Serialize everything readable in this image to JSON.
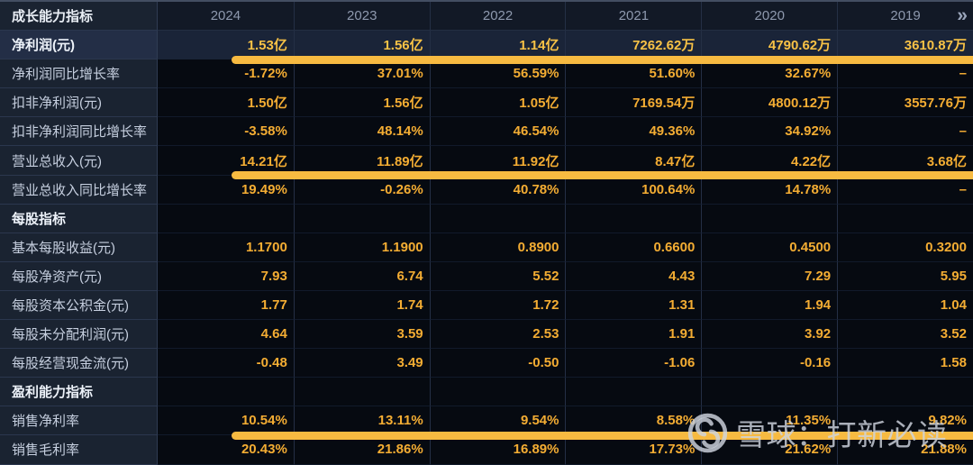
{
  "watermark": {
    "text": "雪球：打新必读"
  },
  "table": {
    "corner_label": "成长能力指标",
    "years": [
      "2024",
      "2023",
      "2022",
      "2021",
      "2020",
      "2019"
    ],
    "more_icon": "»",
    "rows": [
      {
        "type": "highlight",
        "bar": true,
        "label": "净利润(元)",
        "values": [
          "1.53亿",
          "1.56亿",
          "1.14亿",
          "7262.62万",
          "4790.62万",
          "3610.87万"
        ]
      },
      {
        "type": "data",
        "bar": false,
        "label": "净利润同比增长率",
        "values": [
          "-1.72%",
          "37.01%",
          "56.59%",
          "51.60%",
          "32.67%",
          "–"
        ]
      },
      {
        "type": "data",
        "bar": false,
        "label": "扣非净利润(元)",
        "values": [
          "1.50亿",
          "1.56亿",
          "1.05亿",
          "7169.54万",
          "4800.12万",
          "3557.76万"
        ]
      },
      {
        "type": "data",
        "bar": false,
        "label": "扣非净利润同比增长率",
        "values": [
          "-3.58%",
          "48.14%",
          "46.54%",
          "49.36%",
          "34.92%",
          "–"
        ]
      },
      {
        "type": "data",
        "bar": true,
        "label": "营业总收入(元)",
        "values": [
          "14.21亿",
          "11.89亿",
          "11.92亿",
          "8.47亿",
          "4.22亿",
          "3.68亿"
        ]
      },
      {
        "type": "data",
        "bar": false,
        "label": "营业总收入同比增长率",
        "values": [
          "19.49%",
          "-0.26%",
          "40.78%",
          "100.64%",
          "14.78%",
          "–"
        ]
      },
      {
        "type": "section",
        "bar": false,
        "label": "每股指标",
        "values": [
          "",
          "",
          "",
          "",
          "",
          ""
        ]
      },
      {
        "type": "data",
        "bar": false,
        "label": "基本每股收益(元)",
        "values": [
          "1.1700",
          "1.1900",
          "0.8900",
          "0.6600",
          "0.4500",
          "0.3200"
        ]
      },
      {
        "type": "data",
        "bar": false,
        "label": "每股净资产(元)",
        "values": [
          "7.93",
          "6.74",
          "5.52",
          "4.43",
          "7.29",
          "5.95"
        ]
      },
      {
        "type": "data",
        "bar": false,
        "label": "每股资本公积金(元)",
        "values": [
          "1.77",
          "1.74",
          "1.72",
          "1.31",
          "1.94",
          "1.04"
        ]
      },
      {
        "type": "data",
        "bar": false,
        "label": "每股未分配利润(元)",
        "values": [
          "4.64",
          "3.59",
          "2.53",
          "1.91",
          "3.92",
          "3.52"
        ]
      },
      {
        "type": "data",
        "bar": false,
        "label": "每股经营现金流(元)",
        "values": [
          "-0.48",
          "3.49",
          "-0.50",
          "-1.06",
          "-0.16",
          "1.58"
        ]
      },
      {
        "type": "section",
        "bar": false,
        "label": "盈利能力指标",
        "values": [
          "",
          "",
          "",
          "",
          "",
          ""
        ]
      },
      {
        "type": "data",
        "bar": true,
        "label": "销售净利率",
        "values": [
          "10.54%",
          "13.11%",
          "9.54%",
          "8.58%",
          "11.35%",
          "9.82%"
        ]
      },
      {
        "type": "data",
        "bar": false,
        "label": "销售毛利率",
        "values": [
          "20.43%",
          "21.86%",
          "16.89%",
          "17.73%",
          "21.62%",
          "21.88%"
        ]
      }
    ]
  },
  "colors": {
    "accent_bar": "#F7BA41",
    "value_text": "#F4AD33",
    "highlight_value_text": "#F8C246",
    "label_column_bg": "#1A2331",
    "highlight_row_bg": "#1A2438",
    "data_cell_bg": "#060A11",
    "year_header_text": "#8E99AE"
  }
}
